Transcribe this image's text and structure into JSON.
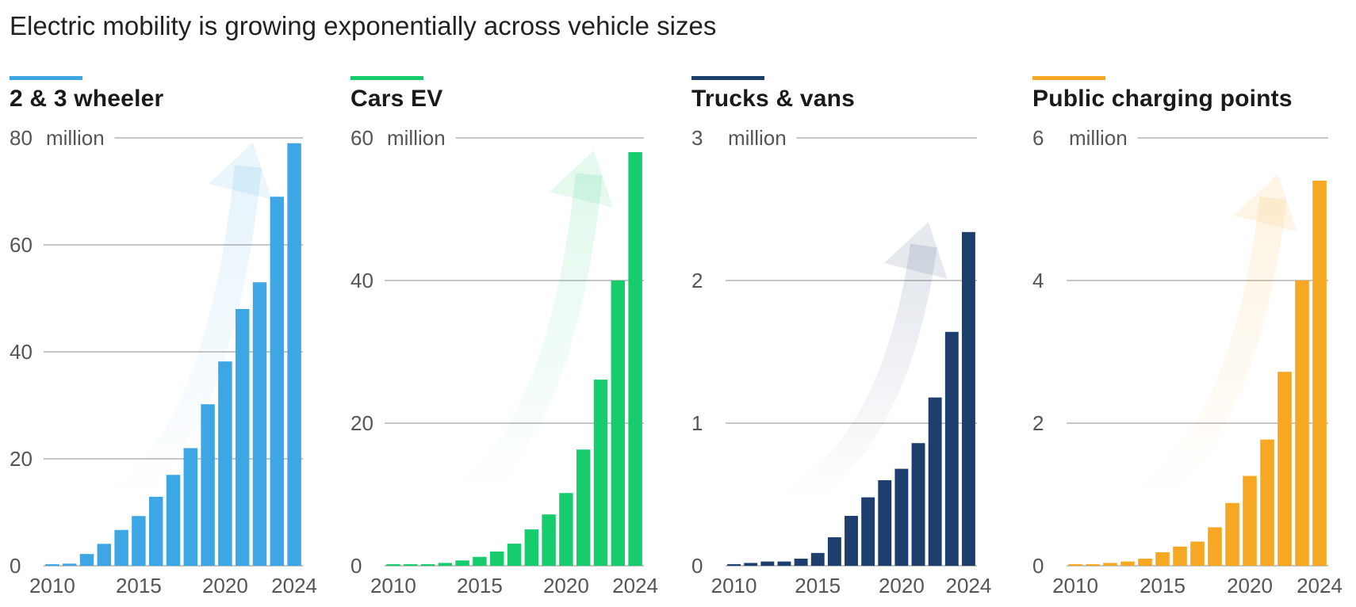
{
  "subtitle": "Electric mobility is growing exponentially across vehicle sizes",
  "chart_data": [
    {
      "type": "bar",
      "title": "2 & 3 wheeler",
      "color": "#3ca7e4",
      "unit": "million",
      "ylim": [
        0,
        80
      ],
      "yticks": [
        0,
        20,
        40,
        60,
        80
      ],
      "categories": [
        "2010",
        "2011",
        "2012",
        "2013",
        "2014",
        "2015",
        "2016",
        "2017",
        "2018",
        "2019",
        "2020",
        "2021",
        "2022",
        "2023",
        "2024"
      ],
      "values": [
        0.3,
        0.4,
        2.2,
        4.1,
        6.7,
        9.3,
        12.9,
        17.0,
        22.0,
        30.2,
        38.2,
        48.0,
        53.0,
        69.0,
        79.0
      ],
      "xtick_labels": [
        "2010",
        "2015",
        "2020",
        "2024"
      ]
    },
    {
      "type": "bar",
      "title": "Cars EV",
      "color": "#16cc6d",
      "unit": "million",
      "ylim": [
        0,
        60
      ],
      "yticks": [
        0,
        20,
        40,
        60
      ],
      "categories": [
        "2010",
        "2011",
        "2012",
        "2013",
        "2014",
        "2015",
        "2016",
        "2017",
        "2018",
        "2019",
        "2020",
        "2021",
        "2022",
        "2023",
        "2024"
      ],
      "values": [
        0.02,
        0.06,
        0.18,
        0.4,
        0.75,
        1.25,
        2.0,
        3.1,
        5.1,
        7.2,
        10.2,
        16.3,
        26.1,
        40.0,
        58.0
      ],
      "xtick_labels": [
        "2010",
        "2015",
        "2020",
        "2024"
      ]
    },
    {
      "type": "bar",
      "title": "Trucks & vans",
      "color": "#1e3f6e",
      "unit": "million",
      "ylim": [
        0,
        3
      ],
      "yticks": [
        0,
        1,
        2,
        3
      ],
      "categories": [
        "2010",
        "2011",
        "2012",
        "2013",
        "2014",
        "2015",
        "2016",
        "2017",
        "2018",
        "2019",
        "2020",
        "2021",
        "2022",
        "2023",
        "2024"
      ],
      "values": [
        0.01,
        0.02,
        0.03,
        0.03,
        0.05,
        0.09,
        0.2,
        0.35,
        0.48,
        0.6,
        0.68,
        0.86,
        1.18,
        1.64,
        2.34
      ],
      "xtick_labels": [
        "2010",
        "2015",
        "2020",
        "2024"
      ]
    },
    {
      "type": "bar",
      "title": "Public charging points",
      "color": "#f7a823",
      "unit": "million",
      "ylim": [
        0,
        6
      ],
      "yticks": [
        0,
        2,
        4,
        6
      ],
      "categories": [
        "2010",
        "2011",
        "2012",
        "2013",
        "2014",
        "2015",
        "2016",
        "2017",
        "2018",
        "2019",
        "2020",
        "2021",
        "2022",
        "2023",
        "2024"
      ],
      "values": [
        0.01,
        0.02,
        0.04,
        0.06,
        0.1,
        0.19,
        0.27,
        0.34,
        0.54,
        0.88,
        1.26,
        1.77,
        2.72,
        4.0,
        5.4
      ],
      "xtick_labels": [
        "2010",
        "2015",
        "2020",
        "2024"
      ]
    }
  ]
}
